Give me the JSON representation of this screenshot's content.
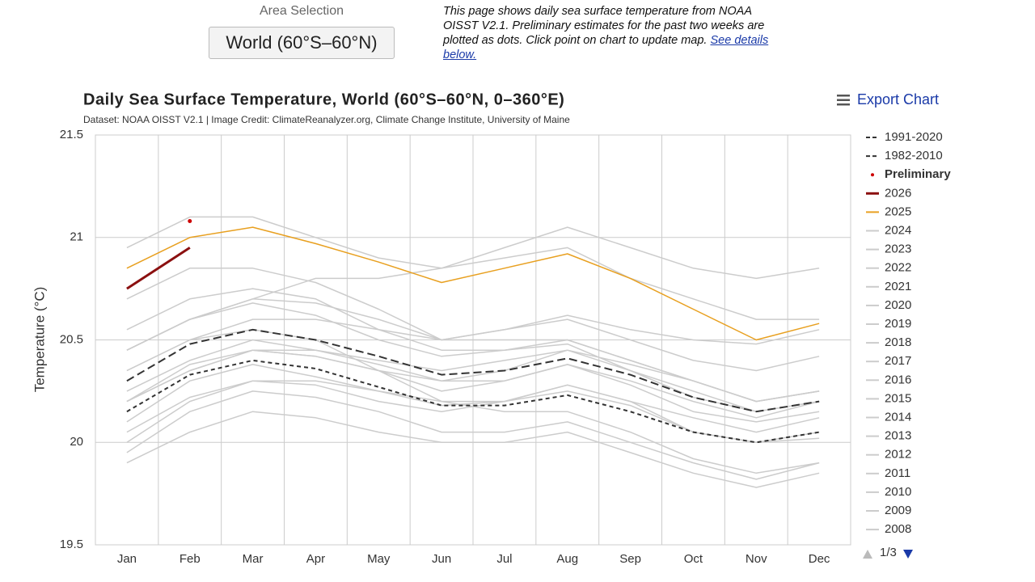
{
  "page": {
    "area_label": "Area Selection",
    "area_value": "World (60°S–60°N)",
    "description": "This page shows daily sea surface temperature from NOAA OISST V2.1. Preliminary estimates for the past two weeks are plotted as dots. Click point on chart to update map.",
    "description_link": "See details below.",
    "export": "Export Chart",
    "legend_page": "1/3"
  },
  "chart_data": {
    "type": "line",
    "title": "Daily Sea Surface Temperature, World (60°S–60°N, 0–360°E)",
    "subtitle": "Dataset: NOAA OISST V2.1 | Image Credit: ClimateReanalyzer.org, Climate Change Institute, University of Maine",
    "y_label": "Temperature (°C)",
    "categories": [
      "Jan",
      "Feb",
      "Mar",
      "Apr",
      "May",
      "Jun",
      "Jul",
      "Aug",
      "Sep",
      "Oct",
      "Nov",
      "Dec"
    ],
    "ylim": [
      19.5,
      21.5
    ],
    "yticks": [
      19.5,
      20,
      20.5,
      21,
      21.5
    ],
    "grid": true,
    "series": [
      {
        "name": "1991-2020",
        "color": "#333333",
        "dash": "long",
        "values": [
          20.3,
          20.48,
          20.55,
          20.5,
          20.42,
          20.33,
          20.35,
          20.41,
          20.33,
          20.22,
          20.15,
          20.2
        ]
      },
      {
        "name": "1982-2010",
        "color": "#333333",
        "dash": "short",
        "values": [
          20.15,
          20.33,
          20.4,
          20.36,
          20.27,
          20.18,
          20.18,
          20.23,
          20.15,
          20.05,
          20.0,
          20.05
        ]
      },
      {
        "name": "Preliminary",
        "color": "#cc0000",
        "style": "dots",
        "values": [
          null,
          21.08,
          null,
          null,
          null,
          null,
          null,
          null,
          null,
          null,
          null,
          null
        ]
      },
      {
        "name": "2026",
        "color": "#8b1010",
        "width": 3,
        "values": [
          20.75,
          20.95,
          null,
          null,
          null,
          null,
          null,
          null,
          null,
          null,
          null,
          null
        ]
      },
      {
        "name": "2025",
        "color": "#e8a020",
        "values": [
          20.85,
          21.0,
          21.05,
          20.97,
          20.88,
          20.78,
          20.85,
          20.92,
          20.8,
          20.65,
          20.5,
          20.58
        ]
      },
      {
        "name": "2024",
        "color": "#cccccc",
        "values": [
          20.95,
          21.1,
          21.1,
          21.0,
          20.9,
          20.85,
          20.9,
          20.95,
          20.8,
          20.7,
          20.6,
          20.6
        ]
      },
      {
        "name": "2023",
        "color": "#cccccc",
        "values": [
          20.45,
          20.6,
          20.7,
          20.8,
          20.8,
          20.85,
          20.95,
          21.05,
          20.95,
          20.85,
          20.8,
          20.85
        ]
      },
      {
        "name": "2022",
        "color": "#cccccc",
        "values": [
          20.25,
          20.4,
          20.5,
          20.45,
          20.38,
          20.3,
          20.35,
          20.45,
          20.35,
          20.25,
          20.15,
          20.2
        ]
      },
      {
        "name": "2021",
        "color": "#cccccc",
        "values": [
          20.2,
          20.35,
          20.45,
          20.42,
          20.35,
          20.3,
          20.3,
          20.38,
          20.28,
          20.15,
          20.1,
          20.15
        ]
      },
      {
        "name": "2020",
        "color": "#cccccc",
        "values": [
          20.55,
          20.7,
          20.75,
          20.7,
          20.55,
          20.45,
          20.45,
          20.5,
          20.4,
          20.3,
          20.2,
          20.25
        ]
      },
      {
        "name": "2019",
        "color": "#cccccc",
        "values": [
          20.45,
          20.6,
          20.7,
          20.68,
          20.6,
          20.5,
          20.55,
          20.6,
          20.5,
          20.4,
          20.35,
          20.42
        ]
      },
      {
        "name": "2018",
        "color": "#cccccc",
        "values": [
          20.2,
          20.38,
          20.45,
          20.42,
          20.35,
          20.25,
          20.3,
          20.38,
          20.3,
          20.2,
          20.12,
          20.2
        ]
      },
      {
        "name": "2017",
        "color": "#cccccc",
        "values": [
          20.45,
          20.6,
          20.68,
          20.62,
          20.5,
          20.42,
          20.45,
          20.48,
          20.35,
          20.22,
          20.15,
          20.2
        ]
      },
      {
        "name": "2016",
        "color": "#cccccc",
        "values": [
          20.7,
          20.85,
          20.85,
          20.78,
          20.65,
          20.5,
          20.5,
          20.5,
          20.4,
          20.3,
          20.2,
          20.25
        ]
      },
      {
        "name": "2015",
        "color": "#cccccc",
        "values": [
          20.35,
          20.5,
          20.6,
          20.6,
          20.55,
          20.5,
          20.55,
          20.62,
          20.55,
          20.5,
          20.48,
          20.55
        ]
      },
      {
        "name": "2014",
        "color": "#cccccc",
        "values": [
          20.2,
          20.35,
          20.45,
          20.45,
          20.4,
          20.35,
          20.4,
          20.45,
          20.38,
          20.3,
          20.2,
          20.25
        ]
      },
      {
        "name": "2013",
        "color": "#cccccc",
        "values": [
          20.1,
          20.3,
          20.38,
          20.32,
          20.25,
          20.18,
          20.2,
          20.25,
          20.18,
          20.05,
          20.0,
          20.05
        ]
      },
      {
        "name": "2012",
        "color": "#cccccc",
        "values": [
          20.05,
          20.22,
          20.3,
          20.3,
          20.25,
          20.2,
          20.2,
          20.28,
          20.2,
          20.05,
          20.0,
          20.02
        ]
      },
      {
        "name": "2011",
        "color": "#cccccc",
        "values": [
          19.95,
          20.15,
          20.25,
          20.22,
          20.15,
          20.05,
          20.05,
          20.1,
          20.0,
          19.9,
          19.82,
          19.9
        ]
      },
      {
        "name": "2010",
        "color": "#cccccc",
        "values": [
          20.35,
          20.5,
          20.55,
          20.5,
          20.35,
          20.2,
          20.15,
          20.15,
          20.05,
          19.92,
          19.85,
          19.9
        ]
      },
      {
        "name": "2009",
        "color": "#cccccc",
        "values": [
          20.0,
          20.2,
          20.3,
          20.28,
          20.2,
          20.15,
          20.2,
          20.28,
          20.2,
          20.12,
          20.05,
          20.12
        ]
      },
      {
        "name": "2008",
        "color": "#cccccc",
        "values": [
          19.9,
          20.05,
          20.15,
          20.12,
          20.05,
          20.0,
          20.0,
          20.05,
          19.95,
          19.85,
          19.78,
          19.85
        ]
      }
    ]
  }
}
